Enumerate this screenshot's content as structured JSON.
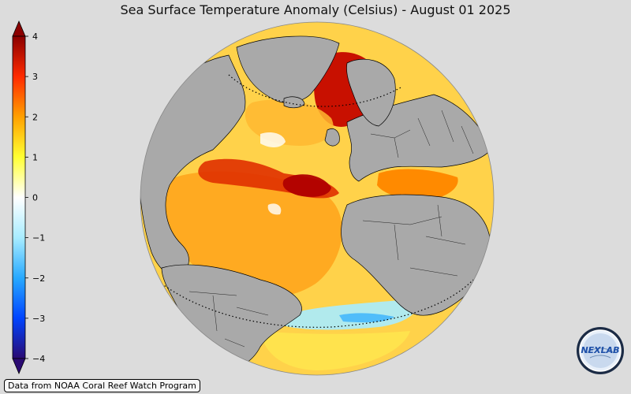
{
  "title": "Sea Surface Temperature Anomaly (Celsius) - August 01 2025",
  "credit": "Data from NOAA Coral Reef Watch Program",
  "colorbar": {
    "min": -4,
    "max": 4,
    "ticks": [
      {
        "value": 4,
        "label": "4"
      },
      {
        "value": 3,
        "label": "3"
      },
      {
        "value": 2,
        "label": "2"
      },
      {
        "value": 1,
        "label": "1"
      },
      {
        "value": 0,
        "label": "0"
      },
      {
        "value": -1,
        "label": "−1"
      },
      {
        "value": -2,
        "label": "−2"
      },
      {
        "value": -3,
        "label": "−3"
      },
      {
        "value": -4,
        "label": "−4"
      }
    ],
    "extends": "both",
    "colors": [
      "#2a0a72",
      "#0044ff",
      "#27a9ff",
      "#a8ecff",
      "#ffffff",
      "#ffff33",
      "#ffa000",
      "#ff2a00",
      "#8b0000"
    ]
  },
  "map": {
    "projection": "orthographic",
    "region": "Atlantic Ocean",
    "land_color": "#a9a9a9",
    "border_color": "#000000",
    "dotted_circles": [
      "Arctic Circle",
      "Tropic of Capricorn"
    ]
  },
  "logo": {
    "text": "NEXLAB",
    "icon": "nexlab-logo-icon"
  }
}
